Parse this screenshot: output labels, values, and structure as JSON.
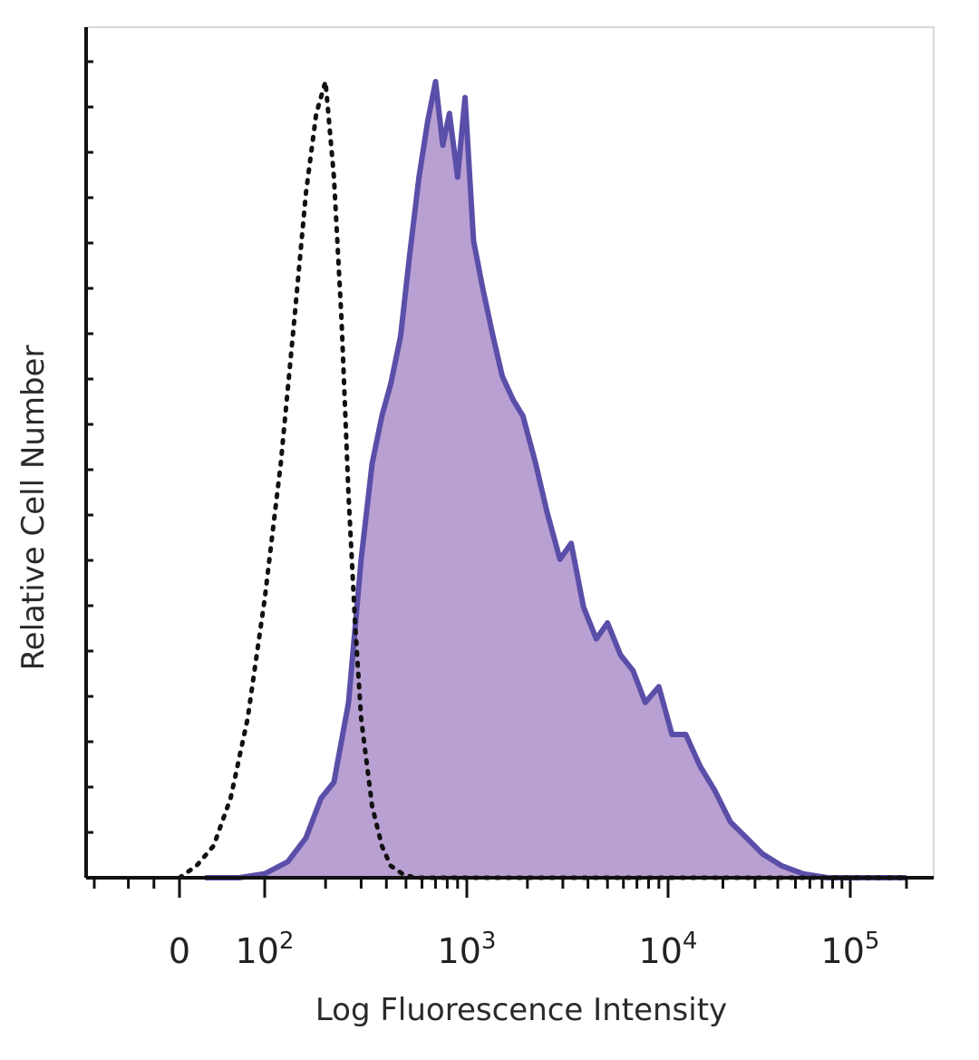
{
  "chart_data": {
    "type": "area",
    "xlabel": "Log Fluorescence Intensity",
    "ylabel": "Relative Cell Number",
    "x_scale": "biexponential",
    "x_ticks": [
      {
        "value": 0,
        "base": "0",
        "exp": ""
      },
      {
        "value": 100,
        "base": "10",
        "exp": "2"
      },
      {
        "value": 1000,
        "base": "10",
        "exp": "3"
      },
      {
        "value": 10000,
        "base": "10",
        "exp": "4"
      },
      {
        "value": 100000,
        "base": "10",
        "exp": "5"
      }
    ],
    "ylim": [
      0,
      100
    ],
    "grid": false,
    "legend": "none",
    "series": [
      {
        "style": "filled",
        "fill_color": "#b9a0d2",
        "line_color": "#5a4fa8",
        "x": [
          30,
          70,
          100,
          130,
          160,
          190,
          220,
          260,
          300,
          340,
          380,
          420,
          470,
          520,
          580,
          640,
          700,
          760,
          820,
          900,
          980,
          1080,
          1200,
          1350,
          1500,
          1700,
          1900,
          2200,
          2500,
          2900,
          3300,
          3800,
          4400,
          5000,
          5800,
          6700,
          7700,
          9000,
          10500,
          12500,
          15000,
          18000,
          22000,
          27000,
          33000,
          42000,
          55000,
          75000,
          100000,
          140000,
          200000
        ],
        "values": [
          0,
          0,
          0.5,
          2,
          5,
          10,
          12,
          22,
          40,
          52,
          58,
          62,
          68,
          78,
          88,
          95,
          100,
          92,
          96,
          88,
          98,
          80,
          74,
          68,
          63,
          60,
          58,
          52,
          46,
          40,
          42,
          34,
          30,
          32,
          28,
          26,
          22,
          24,
          18,
          18,
          14,
          11,
          7,
          5,
          3,
          1.5,
          0.5,
          0,
          0,
          0,
          0
        ]
      },
      {
        "style": "dotted",
        "line_color": "#111111",
        "x": [
          0,
          20,
          40,
          60,
          80,
          100,
          120,
          140,
          160,
          180,
          200,
          220,
          240,
          260,
          280,
          300,
          340,
          380,
          420,
          480,
          550,
          650,
          800,
          1000,
          2000,
          5000,
          20000,
          100000,
          200000
        ],
        "values": [
          0,
          1.5,
          4,
          10,
          20,
          35,
          52,
          70,
          86,
          96,
          100,
          88,
          70,
          48,
          32,
          20,
          9,
          4,
          1.5,
          0.5,
          0,
          0,
          0,
          0,
          0,
          0,
          0,
          0,
          0
        ]
      }
    ]
  }
}
